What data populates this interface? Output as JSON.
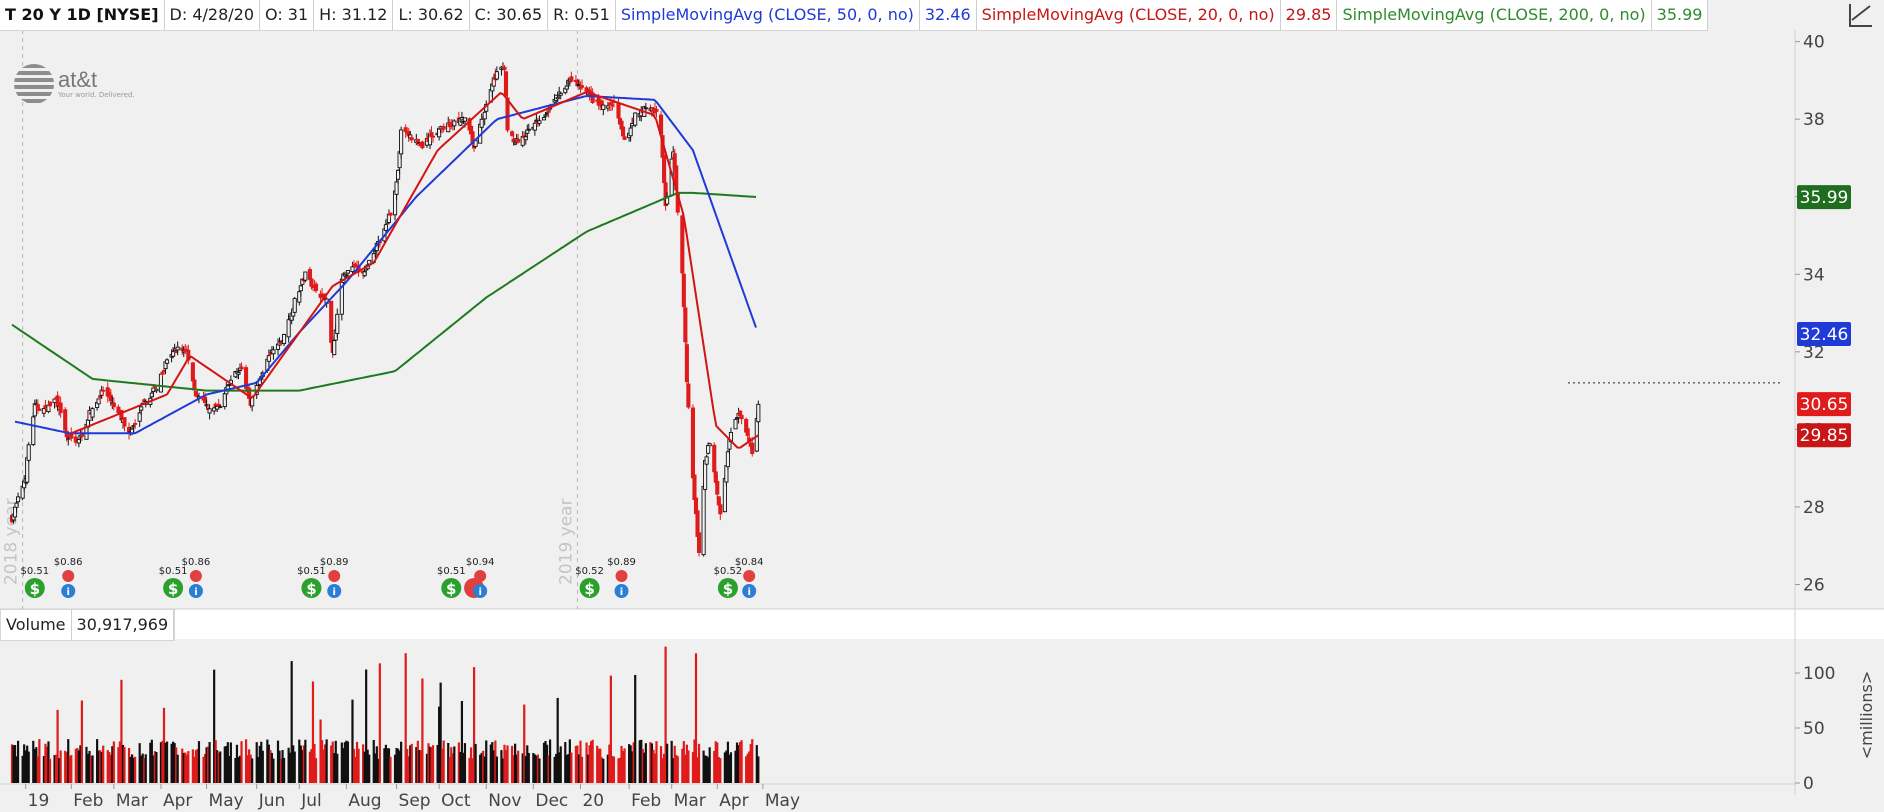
{
  "header": {
    "symbol": "T 20 Y 1D [NYSE]",
    "date": "D: 4/28/20",
    "open": "O: 31",
    "high": "H: 31.12",
    "low": "L: 30.62",
    "close": "C: 30.65",
    "range": "R: 0.51",
    "sma50_label": "SimpleMovingAvg (CLOSE, 50, 0, no)",
    "sma50_value": "32.46",
    "sma20_label": "SimpleMovingAvg (CLOSE, 20, 0, no)",
    "sma20_value": "29.85",
    "sma200_label": "SimpleMovingAvg (CLOSE, 200, 0, no)",
    "sma200_value": "35.99"
  },
  "logo": {
    "brand": "at&t",
    "tagline": "Your world. Delivered."
  },
  "volume_panel": {
    "label": "Volume",
    "value": "30,917,969",
    "unit_label": "<millions>"
  },
  "colors": {
    "up": "#111111",
    "down": "#e01b1b",
    "sma50": "#1f3ad6",
    "sma20": "#d21414",
    "sma200": "#1f7a1f",
    "background": "#f0f0f0",
    "dividend_icon": "#2ca02c",
    "earnings_icon": "#e04040",
    "info_icon": "#2a7fd4"
  },
  "icons": {
    "dividend": "dollar-circle-icon",
    "earnings": "phone-icon",
    "info": "info-circle-icon"
  },
  "chart_data": {
    "type": "candlestick",
    "title": "T 20 Y 1D [NYSE]",
    "price_axis": {
      "ylim": [
        25.6,
        40.3
      ],
      "ticks": [
        26,
        28,
        30,
        32,
        34,
        36,
        38,
        40
      ]
    },
    "volume_axis": {
      "ylim": [
        0,
        130
      ],
      "ticks": [
        0,
        50,
        100
      ],
      "unit": "<millions>"
    },
    "x_axis": {
      "labels": [
        "19",
        "Feb",
        "Mar",
        "Apr",
        "May",
        "Jun",
        "Jul",
        "Aug",
        "Sep",
        "Oct",
        "Nov",
        "Dec",
        "20",
        "Feb",
        "Mar",
        "Apr",
        "May"
      ]
    },
    "year_markers": [
      "2018 year",
      "2019 year"
    ],
    "resistance_level": 31.2,
    "last_values": {
      "close": "30.65",
      "sma20": "29.85",
      "sma50": "32.46",
      "sma200": "35.99"
    },
    "close_anchors": [
      [
        "2018-12-24",
        27.7
      ],
      [
        "2019-01-02",
        28.8
      ],
      [
        "2019-01-04",
        29.6
      ],
      [
        "2019-01-08",
        30.6
      ],
      [
        "2019-01-15",
        30.5
      ],
      [
        "2019-01-22",
        30.8
      ],
      [
        "2019-01-29",
        29.8
      ],
      [
        "2019-02-06",
        29.7
      ],
      [
        "2019-02-13",
        30.4
      ],
      [
        "2019-02-22",
        31.0
      ],
      [
        "2019-03-04",
        30.4
      ],
      [
        "2019-03-12",
        29.9
      ],
      [
        "2019-03-20",
        30.6
      ],
      [
        "2019-03-29",
        31.1
      ],
      [
        "2019-04-05",
        31.8
      ],
      [
        "2019-04-12",
        32.1
      ],
      [
        "2019-04-18",
        32.0
      ],
      [
        "2019-04-24",
        30.9
      ],
      [
        "2019-05-03",
        30.5
      ],
      [
        "2019-05-10",
        30.6
      ],
      [
        "2019-05-17",
        31.3
      ],
      [
        "2019-05-23",
        31.6
      ],
      [
        "2019-05-30",
        30.7
      ],
      [
        "2019-06-06",
        31.4
      ],
      [
        "2019-06-13",
        32.0
      ],
      [
        "2019-06-20",
        32.3
      ],
      [
        "2019-06-28",
        33.3
      ],
      [
        "2019-07-05",
        34.0
      ],
      [
        "2019-07-12",
        33.6
      ],
      [
        "2019-07-19",
        33.3
      ],
      [
        "2019-07-23",
        32.0
      ],
      [
        "2019-07-29",
        33.9
      ],
      [
        "2019-08-05",
        34.2
      ],
      [
        "2019-08-12",
        34.0
      ],
      [
        "2019-08-19",
        34.6
      ],
      [
        "2019-08-26",
        35.1
      ],
      [
        "2019-08-30",
        35.6
      ],
      [
        "2019-09-04",
        36.6
      ],
      [
        "2019-09-06",
        37.8
      ],
      [
        "2019-09-13",
        37.5
      ],
      [
        "2019-09-20",
        37.3
      ],
      [
        "2019-09-27",
        37.6
      ],
      [
        "2019-10-04",
        37.8
      ],
      [
        "2019-10-11",
        37.9
      ],
      [
        "2019-10-18",
        38.0
      ],
      [
        "2019-10-24",
        37.3
      ],
      [
        "2019-10-28",
        37.8
      ],
      [
        "2019-11-04",
        38.8
      ],
      [
        "2019-11-08",
        39.2
      ],
      [
        "2019-11-13",
        39.3
      ],
      [
        "2019-11-15",
        37.8
      ],
      [
        "2019-11-20",
        37.4
      ],
      [
        "2019-11-27",
        37.6
      ],
      [
        "2019-12-04",
        37.9
      ],
      [
        "2019-12-11",
        38.2
      ],
      [
        "2019-12-18",
        38.6
      ],
      [
        "2019-12-27",
        39.0
      ],
      [
        "2020-01-03",
        38.8
      ],
      [
        "2020-01-10",
        38.5
      ],
      [
        "2020-01-17",
        38.3
      ],
      [
        "2020-01-24",
        38.4
      ],
      [
        "2020-01-31",
        37.4
      ],
      [
        "2020-02-07",
        38.1
      ],
      [
        "2020-02-14",
        38.3
      ],
      [
        "2020-02-21",
        38.2
      ],
      [
        "2020-02-24",
        37.6
      ],
      [
        "2020-02-27",
        35.7
      ],
      [
        "2020-03-03",
        37.2
      ],
      [
        "2020-03-09",
        34.0
      ],
      [
        "2020-03-12",
        31.3
      ],
      [
        "2020-03-16",
        28.7
      ],
      [
        "2020-03-20",
        26.8
      ],
      [
        "2020-03-24",
        29.2
      ],
      [
        "2020-03-27",
        29.7
      ],
      [
        "2020-03-31",
        28.7
      ],
      [
        "2020-04-03",
        27.8
      ],
      [
        "2020-04-09",
        29.8
      ],
      [
        "2020-04-15",
        30.4
      ],
      [
        "2020-04-20",
        29.9
      ],
      [
        "2020-04-24",
        29.4
      ],
      [
        "2020-04-28",
        30.65
      ]
    ],
    "sma20_anchors": [
      [
        "2019-02-01",
        29.9
      ],
      [
        "2019-04-05",
        30.9
      ],
      [
        "2019-04-20",
        31.9
      ],
      [
        "2019-05-31",
        30.8
      ],
      [
        "2019-07-23",
        33.7
      ],
      [
        "2019-08-19",
        34.3
      ],
      [
        "2019-09-30",
        37.2
      ],
      [
        "2019-11-11",
        38.7
      ],
      [
        "2019-11-25",
        38.0
      ],
      [
        "2020-01-06",
        38.7
      ],
      [
        "2020-02-20",
        38.1
      ],
      [
        "2020-03-10",
        35.5
      ],
      [
        "2020-03-31",
        30.1
      ],
      [
        "2020-04-15",
        29.5
      ],
      [
        "2020-04-28",
        29.85
      ]
    ],
    "sma50_anchors": [
      [
        "2018-12-26",
        30.2
      ],
      [
        "2019-01-31",
        29.9
      ],
      [
        "2019-03-15",
        29.9
      ],
      [
        "2019-05-01",
        30.9
      ],
      [
        "2019-06-03",
        31.2
      ],
      [
        "2019-07-01",
        32.5
      ],
      [
        "2019-08-01",
        33.8
      ],
      [
        "2019-09-16",
        36.0
      ],
      [
        "2019-11-08",
        38.0
      ],
      [
        "2020-01-06",
        38.6
      ],
      [
        "2020-02-20",
        38.5
      ],
      [
        "2020-03-16",
        37.2
      ],
      [
        "2020-04-28",
        32.46
      ]
    ],
    "sma200_anchors": [
      [
        "2018-12-24",
        32.7
      ],
      [
        "2019-02-15",
        31.3
      ],
      [
        "2019-05-01",
        31.0
      ],
      [
        "2019-07-01",
        31.0
      ],
      [
        "2019-09-02",
        31.5
      ],
      [
        "2019-11-01",
        33.4
      ],
      [
        "2020-01-06",
        35.1
      ],
      [
        "2020-03-06",
        36.1
      ],
      [
        "2020-03-16",
        36.1
      ],
      [
        "2020-04-28",
        35.99
      ]
    ],
    "events": [
      {
        "type": "dividend",
        "date": "2019-01-08",
        "label": "$0.51"
      },
      {
        "type": "info",
        "date": "2019-01-30",
        "label": "$0.86"
      },
      {
        "type": "dividend",
        "date": "2019-04-09",
        "label": "$0.51"
      },
      {
        "type": "info",
        "date": "2019-04-24",
        "label": "$0.86"
      },
      {
        "type": "dividend",
        "date": "2019-07-09",
        "label": "$0.51"
      },
      {
        "type": "info",
        "date": "2019-07-24",
        "label": "$0.89"
      },
      {
        "type": "dividend",
        "date": "2019-10-09",
        "label": "$0.51"
      },
      {
        "type": "earnings",
        "date": "2019-10-24",
        "label": ""
      },
      {
        "type": "info",
        "date": "2019-10-28",
        "label": "$0.94"
      },
      {
        "type": "dividend",
        "date": "2020-01-08",
        "label": "$0.52"
      },
      {
        "type": "info",
        "date": "2020-01-29",
        "label": "$0.89"
      },
      {
        "type": "dividend",
        "date": "2020-04-08",
        "label": "$0.52"
      },
      {
        "type": "info",
        "date": "2020-04-22",
        "label": "$0.84"
      }
    ]
  }
}
